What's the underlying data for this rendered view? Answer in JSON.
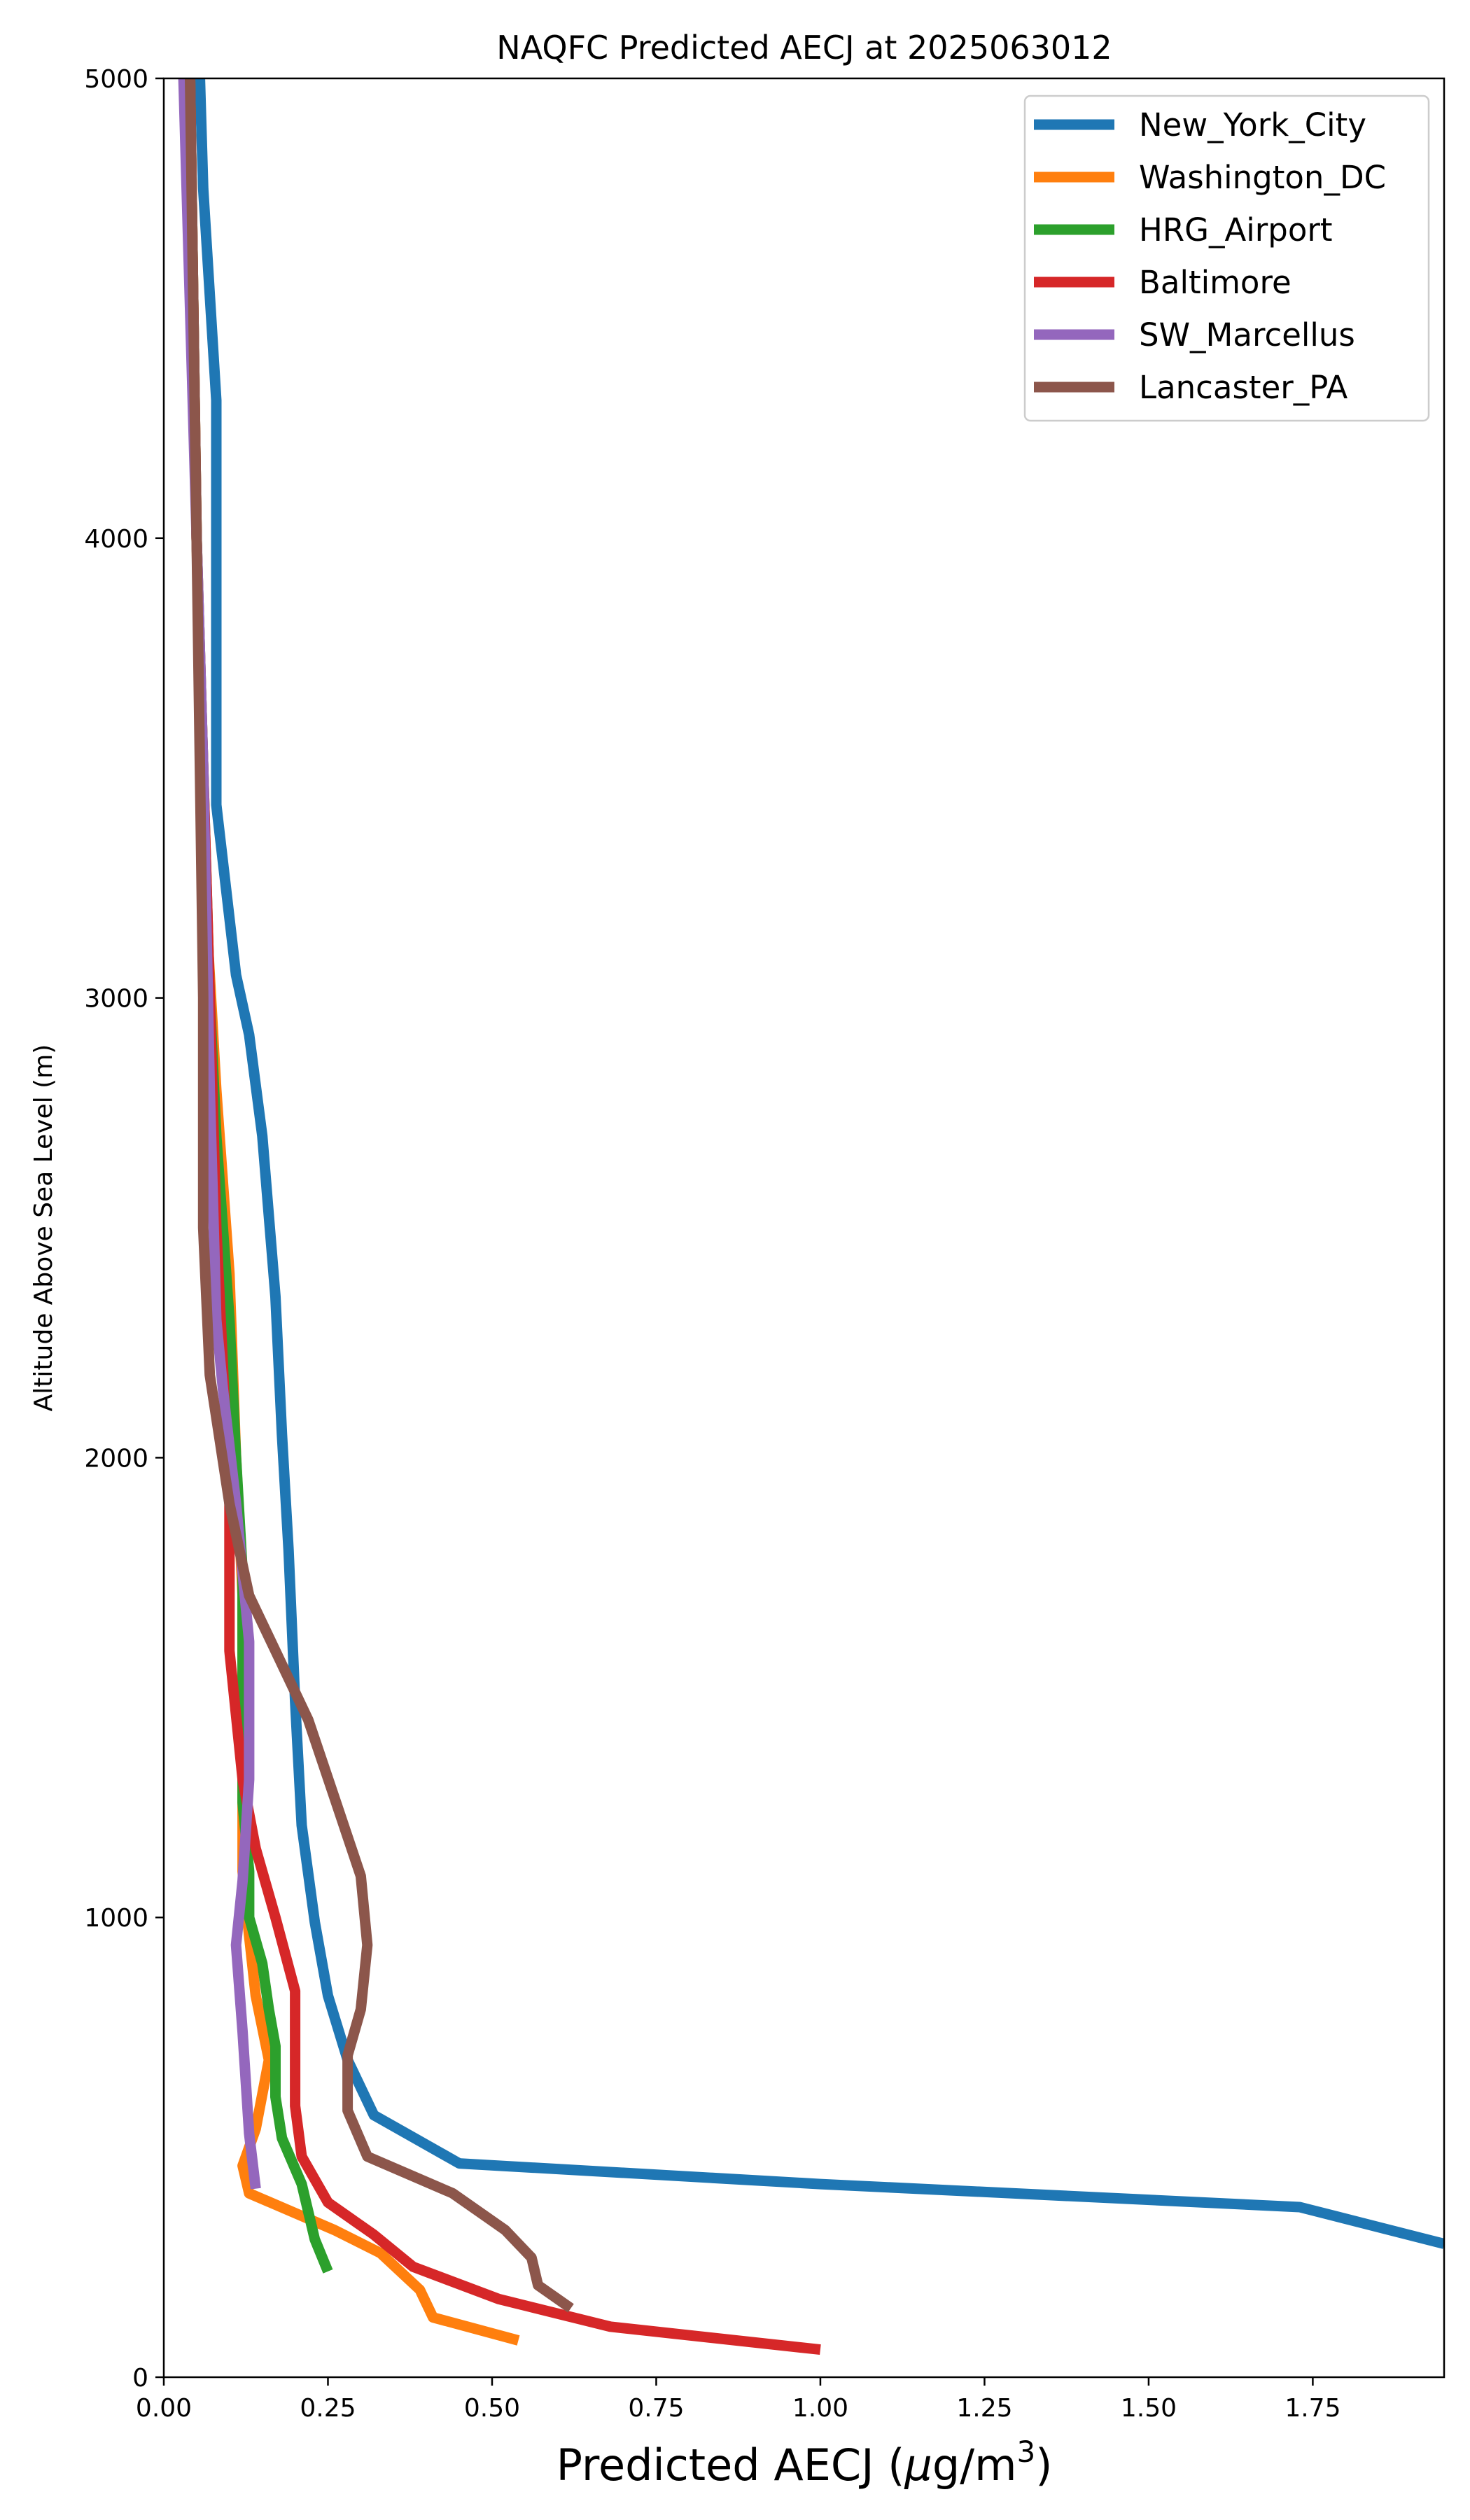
{
  "chart_data": {
    "type": "line",
    "title": "NAQFC Predicted AECJ at 2025063012",
    "xlabel": "Predicted AECJ (μg/m³)",
    "xlabel_parts": {
      "main": "Predicted AECJ (",
      "mu": "μ",
      "unit": "g/m",
      "sup": "3",
      "close": ")"
    },
    "ylabel": "Altitude Above Sea Level (m)",
    "xlim": [
      0,
      1.95
    ],
    "ylim": [
      0,
      5000
    ],
    "xticks": [
      "0.00",
      "0.25",
      "0.50",
      "0.75",
      "1.00",
      "1.25",
      "1.50",
      "1.75"
    ],
    "xtick_values": [
      0,
      0.25,
      0.5,
      0.75,
      1.0,
      1.25,
      1.5,
      1.75
    ],
    "yticks": [
      "0",
      "1000",
      "2000",
      "3000",
      "4000",
      "5000"
    ],
    "ytick_values": [
      0,
      1000,
      2000,
      3000,
      4000,
      5000
    ],
    "grid": false,
    "legend_position": "top-right",
    "series": [
      {
        "name": "New_York_City",
        "color": "#1f77b4",
        "points": [
          [
            1.95,
            290
          ],
          [
            1.73,
            370
          ],
          [
            1.0,
            420
          ],
          [
            0.45,
            465
          ],
          [
            0.32,
            570
          ],
          [
            0.28,
            690
          ],
          [
            0.25,
            830
          ],
          [
            0.23,
            990
          ],
          [
            0.21,
            1200
          ],
          [
            0.2,
            1470
          ],
          [
            0.19,
            1800
          ],
          [
            0.18,
            2050
          ],
          [
            0.17,
            2350
          ],
          [
            0.15,
            2700
          ],
          [
            0.13,
            2920
          ],
          [
            0.11,
            3050
          ],
          [
            0.08,
            3420
          ],
          [
            0.08,
            4300
          ],
          [
            0.06,
            4760
          ],
          [
            0.055,
            5000
          ]
        ]
      },
      {
        "name": "Washington_DC",
        "color": "#ff7f0e",
        "points": [
          [
            0.54,
            80
          ],
          [
            0.41,
            130
          ],
          [
            0.39,
            190
          ],
          [
            0.33,
            270
          ],
          [
            0.26,
            320
          ],
          [
            0.13,
            400
          ],
          [
            0.12,
            460
          ],
          [
            0.14,
            540
          ],
          [
            0.16,
            690
          ],
          [
            0.15,
            760
          ],
          [
            0.14,
            830
          ],
          [
            0.13,
            960
          ],
          [
            0.12,
            1100
          ],
          [
            0.12,
            1700
          ],
          [
            0.11,
            2000
          ],
          [
            0.1,
            2400
          ],
          [
            0.08,
            2800
          ],
          [
            0.06,
            3300
          ],
          [
            0.05,
            4000
          ],
          [
            0.045,
            4500
          ],
          [
            0.04,
            5000
          ]
        ]
      },
      {
        "name": "HRG_Airport",
        "color": "#2ca02c",
        "points": [
          [
            0.25,
            230
          ],
          [
            0.23,
            300
          ],
          [
            0.21,
            420
          ],
          [
            0.18,
            520
          ],
          [
            0.17,
            610
          ],
          [
            0.17,
            720
          ],
          [
            0.16,
            800
          ],
          [
            0.15,
            900
          ],
          [
            0.13,
            1000
          ],
          [
            0.13,
            1100
          ],
          [
            0.12,
            1250
          ],
          [
            0.12,
            1500
          ],
          [
            0.12,
            1750
          ],
          [
            0.11,
            2000
          ],
          [
            0.1,
            2300
          ],
          [
            0.08,
            2700
          ],
          [
            0.07,
            3000
          ],
          [
            0.06,
            3500
          ],
          [
            0.05,
            4000
          ],
          [
            0.045,
            4500
          ],
          [
            0.04,
            5000
          ]
        ]
      },
      {
        "name": "Baltimore",
        "color": "#d62728",
        "points": [
          [
            1.0,
            60
          ],
          [
            0.68,
            110
          ],
          [
            0.51,
            170
          ],
          [
            0.38,
            240
          ],
          [
            0.32,
            310
          ],
          [
            0.25,
            380
          ],
          [
            0.21,
            480
          ],
          [
            0.2,
            590
          ],
          [
            0.2,
            700
          ],
          [
            0.2,
            840
          ],
          [
            0.17,
            1000
          ],
          [
            0.14,
            1150
          ],
          [
            0.12,
            1300
          ],
          [
            0.1,
            1580
          ],
          [
            0.1,
            1900
          ],
          [
            0.09,
            2200
          ],
          [
            0.08,
            2500
          ],
          [
            0.07,
            3000
          ],
          [
            0.06,
            3500
          ],
          [
            0.05,
            4000
          ],
          [
            0.045,
            4500
          ],
          [
            0.04,
            5000
          ]
        ]
      },
      {
        "name": "SW_Marcellus",
        "color": "#9467bd",
        "points": [
          [
            0.14,
            410
          ],
          [
            0.13,
            530
          ],
          [
            0.12,
            750
          ],
          [
            0.11,
            940
          ],
          [
            0.12,
            1080
          ],
          [
            0.13,
            1300
          ],
          [
            0.13,
            1600
          ],
          [
            0.11,
            1900
          ],
          [
            0.09,
            2150
          ],
          [
            0.08,
            2300
          ],
          [
            0.07,
            2800
          ],
          [
            0.06,
            3500
          ],
          [
            0.05,
            4000
          ],
          [
            0.04,
            4500
          ],
          [
            0.03,
            5000
          ]
        ]
      },
      {
        "name": "Lancaster_PA",
        "color": "#8c564b",
        "points": [
          [
            0.62,
            150
          ],
          [
            0.57,
            200
          ],
          [
            0.56,
            260
          ],
          [
            0.52,
            320
          ],
          [
            0.44,
            400
          ],
          [
            0.31,
            480
          ],
          [
            0.28,
            580
          ],
          [
            0.28,
            700
          ],
          [
            0.3,
            800
          ],
          [
            0.31,
            940
          ],
          [
            0.3,
            1090
          ],
          [
            0.26,
            1260
          ],
          [
            0.22,
            1430
          ],
          [
            0.17,
            1580
          ],
          [
            0.13,
            1700
          ],
          [
            0.1,
            1900
          ],
          [
            0.07,
            2180
          ],
          [
            0.06,
            2500
          ],
          [
            0.06,
            3000
          ],
          [
            0.055,
            3500
          ],
          [
            0.05,
            4000
          ],
          [
            0.045,
            4500
          ],
          [
            0.04,
            5000
          ]
        ]
      }
    ]
  }
}
